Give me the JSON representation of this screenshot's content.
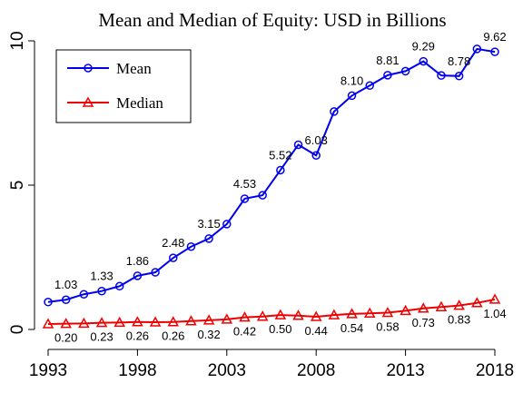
{
  "chart_data": {
    "type": "line",
    "title": "Mean and Median of Equity: USD in Billions",
    "x": [
      1993,
      1994,
      1995,
      1996,
      1997,
      1998,
      1999,
      2000,
      2001,
      2002,
      2003,
      2004,
      2005,
      2006,
      2007,
      2008,
      2009,
      2010,
      2011,
      2012,
      2013,
      2014,
      2015,
      2016,
      2017,
      2018
    ],
    "series": [
      {
        "name": "Mean",
        "color": "#0000ee",
        "marker": "circle",
        "values": [
          0.95,
          1.03,
          1.22,
          1.33,
          1.5,
          1.86,
          1.98,
          2.48,
          2.87,
          3.15,
          3.65,
          4.53,
          4.65,
          5.52,
          6.4,
          6.03,
          7.55,
          8.1,
          8.45,
          8.81,
          8.95,
          9.29,
          8.8,
          8.78,
          9.72,
          9.62
        ],
        "value_labels": [
          null,
          "1.03",
          null,
          "1.33",
          null,
          "1.86",
          null,
          "2.48",
          null,
          "3.15",
          null,
          "4.53",
          null,
          "5.52",
          null,
          "6.03",
          null,
          "8.10",
          null,
          "8.81",
          null,
          "9.29",
          null,
          "8.78",
          null,
          "9.62"
        ]
      },
      {
        "name": "Median",
        "color": "#ee0000",
        "marker": "triangle",
        "values": [
          0.19,
          0.2,
          0.21,
          0.23,
          0.24,
          0.26,
          0.25,
          0.26,
          0.29,
          0.32,
          0.35,
          0.42,
          0.45,
          0.5,
          0.48,
          0.44,
          0.5,
          0.54,
          0.56,
          0.58,
          0.65,
          0.73,
          0.78,
          0.83,
          0.92,
          1.04
        ],
        "value_labels": [
          null,
          "0.20",
          null,
          "0.23",
          null,
          "0.26",
          null,
          "0.26",
          null,
          "0.32",
          null,
          "0.42",
          null,
          "0.50",
          null,
          "0.44",
          null,
          "0.54",
          null,
          "0.58",
          null,
          "0.73",
          null,
          "0.83",
          null,
          "1.04"
        ]
      }
    ],
    "xlim": [
      1993,
      2018
    ],
    "xticks": [
      1993,
      1998,
      2003,
      2008,
      2013,
      2018
    ],
    "ylim": [
      0,
      10
    ],
    "yticks": [
      0,
      5,
      10
    ],
    "legend": "top-left"
  }
}
